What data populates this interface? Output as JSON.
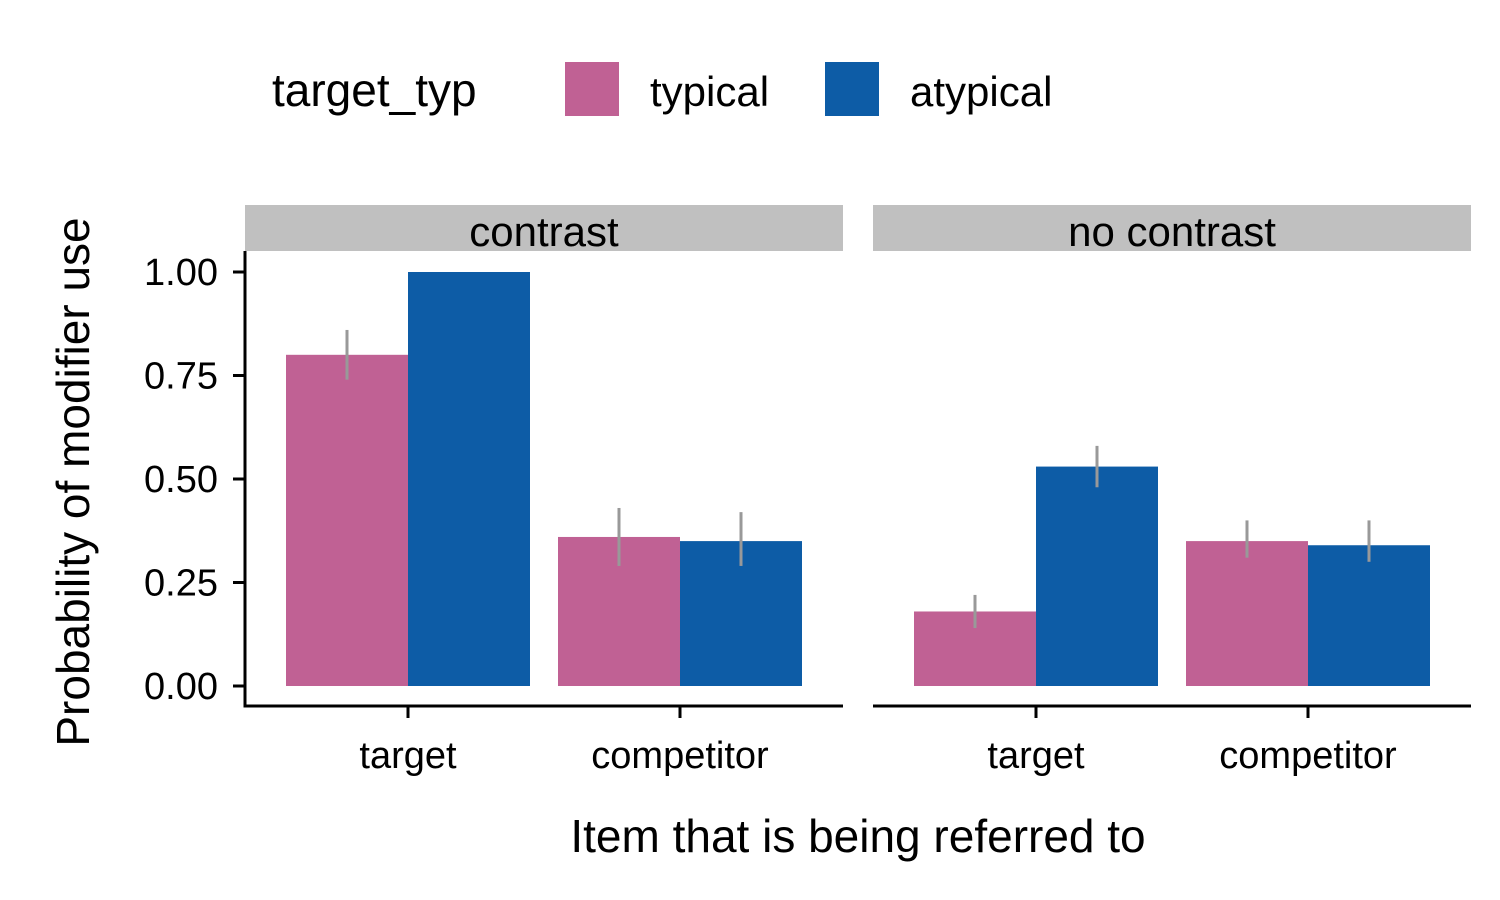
{
  "chart_data": {
    "type": "bar",
    "xlabel": "Item that is being referred to",
    "ylabel": "Probability of modifier use",
    "ylim": [
      0,
      1.05
    ],
    "yticks": [
      "0.00",
      "0.25",
      "0.50",
      "0.75",
      "1.00"
    ],
    "ytick_values": [
      0,
      0.25,
      0.5,
      0.75,
      1.0
    ],
    "legend": {
      "title": "target_typ",
      "position": "top",
      "entries": [
        {
          "name": "typical",
          "color": "#C06194"
        },
        {
          "name": "atypical",
          "color": "#0D5CA6"
        }
      ]
    },
    "error_bar_color": "#999999",
    "strip_color": "#C0C0C0",
    "categories": [
      "target",
      "competitor"
    ],
    "facets": [
      {
        "label": "contrast",
        "series": [
          {
            "name": "typical",
            "values": [
              0.8,
              0.36
            ],
            "ci_low": [
              0.74,
              0.29
            ],
            "ci_high": [
              0.86,
              0.43
            ]
          },
          {
            "name": "atypical",
            "values": [
              1.0,
              0.35
            ],
            "ci_low": [
              1.0,
              0.29
            ],
            "ci_high": [
              1.0,
              0.42
            ]
          }
        ]
      },
      {
        "label": "no contrast",
        "series": [
          {
            "name": "typical",
            "values": [
              0.18,
              0.35
            ],
            "ci_low": [
              0.14,
              0.31
            ],
            "ci_high": [
              0.22,
              0.4
            ]
          },
          {
            "name": "atypical",
            "values": [
              0.53,
              0.34
            ],
            "ci_low": [
              0.48,
              0.3
            ],
            "ci_high": [
              0.58,
              0.4
            ]
          }
        ]
      }
    ]
  }
}
